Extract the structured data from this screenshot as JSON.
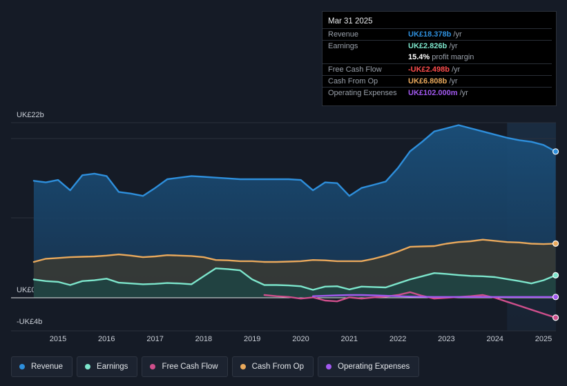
{
  "colors": {
    "revenue": "#2e8fdc",
    "earnings": "#7de6cc",
    "free_cash_flow": "#cf4f8c",
    "cash_from_op": "#eaa95c",
    "operating_expenses": "#a259f0",
    "negative": "#ff4d4d"
  },
  "tooltip": {
    "date": "Mar 31 2025",
    "rows": [
      {
        "label": "Revenue",
        "value": "UK£18.378b",
        "unit": " /yr"
      },
      {
        "label": "Earnings",
        "value": "UK£2.826b",
        "unit": " /yr"
      },
      {
        "label": "",
        "value": "15.4%",
        "unit": " profit margin"
      },
      {
        "label": "Free Cash Flow",
        "value": "-UK£2.498b",
        "unit": " /yr"
      },
      {
        "label": "Cash From Op",
        "value": "UK£6.808b",
        "unit": " /yr"
      },
      {
        "label": "Operating Expenses",
        "value": "UK£102.000m",
        "unit": " /yr"
      }
    ]
  },
  "legend": [
    {
      "label": "Revenue"
    },
    {
      "label": "Earnings"
    },
    {
      "label": "Free Cash Flow"
    },
    {
      "label": "Cash From Op"
    },
    {
      "label": "Operating Expenses"
    }
  ],
  "chart_data": {
    "type": "area",
    "title": "",
    "ylabel": "",
    "xlabel": "",
    "y_unit": "UK£ billions",
    "ylim": [
      -4,
      22
    ],
    "y_tick_labels": [
      {
        "value": 22,
        "label": "UK£22b"
      },
      {
        "value": 0,
        "label": "UK£0"
      },
      {
        "value": -4,
        "label": "-UK£4b"
      }
    ],
    "x_ticks": [
      2015,
      2016,
      2017,
      2018,
      2019,
      2020,
      2021,
      2022,
      2023,
      2024,
      2025
    ],
    "xlim": [
      2014.45,
      2025.3
    ],
    "highlight_from": 2024.25,
    "series": [
      {
        "name": "Revenue",
        "color_key": "revenue",
        "x": [
          2014.5,
          2014.75,
          2015.0,
          2015.25,
          2015.5,
          2015.75,
          2016.0,
          2016.25,
          2016.5,
          2016.75,
          2017.0,
          2017.25,
          2017.5,
          2017.75,
          2018.0,
          2018.25,
          2018.5,
          2018.75,
          2019.0,
          2019.25,
          2019.5,
          2019.75,
          2020.0,
          2020.25,
          2020.5,
          2020.75,
          2021.0,
          2021.25,
          2021.5,
          2021.75,
          2022.0,
          2022.25,
          2022.5,
          2022.75,
          2023.0,
          2023.25,
          2023.5,
          2023.75,
          2024.0,
          2024.25,
          2024.5,
          2024.75,
          2025.0,
          2025.25
        ],
        "values": [
          14.7,
          14.5,
          14.8,
          13.5,
          15.4,
          15.6,
          15.3,
          13.3,
          13.1,
          12.8,
          13.8,
          14.9,
          15.1,
          15.3,
          15.2,
          15.1,
          15.0,
          14.9,
          14.9,
          14.9,
          14.9,
          14.9,
          14.8,
          13.5,
          14.5,
          14.4,
          12.8,
          13.8,
          14.2,
          14.6,
          16.3,
          18.4,
          19.6,
          20.9,
          21.3,
          21.7,
          21.3,
          20.9,
          20.5,
          20.1,
          19.8,
          19.6,
          19.2,
          18.378
        ]
      },
      {
        "name": "Cash From Op",
        "color_key": "cash_from_op",
        "x": [
          2014.5,
          2014.75,
          2015.0,
          2015.25,
          2015.5,
          2015.75,
          2016.0,
          2016.25,
          2016.5,
          2016.75,
          2017.0,
          2017.25,
          2017.5,
          2017.75,
          2018.0,
          2018.25,
          2018.5,
          2018.75,
          2019.0,
          2019.25,
          2019.5,
          2019.75,
          2020.0,
          2020.25,
          2020.5,
          2020.75,
          2021.0,
          2021.25,
          2021.5,
          2021.75,
          2022.0,
          2022.25,
          2022.5,
          2022.75,
          2023.0,
          2023.25,
          2023.5,
          2023.75,
          2024.0,
          2024.25,
          2024.5,
          2024.75,
          2025.0,
          2025.25
        ],
        "values": [
          4.5,
          4.9,
          5.0,
          5.1,
          5.15,
          5.2,
          5.3,
          5.45,
          5.3,
          5.1,
          5.2,
          5.35,
          5.3,
          5.25,
          5.1,
          4.75,
          4.7,
          4.6,
          4.6,
          4.5,
          4.5,
          4.55,
          4.6,
          4.75,
          4.7,
          4.6,
          4.6,
          4.6,
          4.9,
          5.3,
          5.8,
          6.4,
          6.45,
          6.5,
          6.8,
          7.0,
          7.1,
          7.3,
          7.15,
          7.0,
          6.95,
          6.8,
          6.75,
          6.808
        ]
      },
      {
        "name": "Earnings",
        "color_key": "earnings",
        "x": [
          2014.5,
          2014.75,
          2015.0,
          2015.25,
          2015.5,
          2015.75,
          2016.0,
          2016.25,
          2016.5,
          2016.75,
          2017.0,
          2017.25,
          2017.5,
          2017.75,
          2018.0,
          2018.25,
          2018.5,
          2018.75,
          2019.0,
          2019.25,
          2019.5,
          2019.75,
          2020.0,
          2020.25,
          2020.5,
          2020.75,
          2021.0,
          2021.25,
          2021.5,
          2021.75,
          2022.0,
          2022.25,
          2022.5,
          2022.75,
          2023.0,
          2023.25,
          2023.5,
          2023.75,
          2024.0,
          2024.25,
          2024.5,
          2024.75,
          2025.0,
          2025.25
        ],
        "values": [
          2.3,
          2.1,
          2.0,
          1.6,
          2.1,
          2.2,
          2.4,
          1.9,
          1.8,
          1.7,
          1.75,
          1.85,
          1.8,
          1.7,
          2.7,
          3.7,
          3.6,
          3.45,
          2.3,
          1.6,
          1.6,
          1.55,
          1.45,
          1.0,
          1.4,
          1.45,
          1.05,
          1.4,
          1.35,
          1.3,
          1.8,
          2.3,
          2.7,
          3.1,
          3.0,
          2.85,
          2.75,
          2.7,
          2.6,
          2.35,
          2.1,
          1.8,
          2.2,
          2.826
        ]
      },
      {
        "name": "Free Cash Flow",
        "color_key": "free_cash_flow",
        "x": [
          2019.25,
          2019.5,
          2019.75,
          2020.0,
          2020.25,
          2020.5,
          2020.75,
          2021.0,
          2021.25,
          2021.5,
          2021.75,
          2022.0,
          2022.25,
          2022.5,
          2022.75,
          2023.0,
          2023.25,
          2023.5,
          2023.75,
          2024.0,
          2024.25,
          2024.5,
          2024.75,
          2025.0,
          2025.25
        ],
        "values": [
          0.35,
          0.2,
          0.1,
          -0.1,
          0.05,
          -0.35,
          -0.45,
          0.05,
          -0.1,
          0.05,
          0.15,
          0.35,
          0.7,
          0.25,
          -0.1,
          0.0,
          0.1,
          0.2,
          0.35,
          0.0,
          -0.5,
          -1.0,
          -1.5,
          -2.0,
          -2.498
        ]
      },
      {
        "name": "Operating Expenses",
        "color_key": "operating_expenses",
        "x": [
          2020.25,
          2020.5,
          2020.75,
          2021.0,
          2021.25,
          2021.5,
          2021.75,
          2022.0,
          2022.25,
          2022.5,
          2022.75,
          2023.0,
          2023.25,
          2023.5,
          2023.75,
          2024.0,
          2024.25,
          2024.5,
          2024.75,
          2025.0,
          2025.25
        ],
        "values": [
          0.2,
          0.25,
          0.3,
          0.35,
          0.35,
          0.3,
          0.25,
          0.2,
          0.15,
          0.12,
          0.1,
          0.1,
          0.1,
          0.1,
          0.1,
          0.1,
          0.1,
          0.1,
          0.1,
          0.1,
          0.102
        ]
      }
    ]
  }
}
